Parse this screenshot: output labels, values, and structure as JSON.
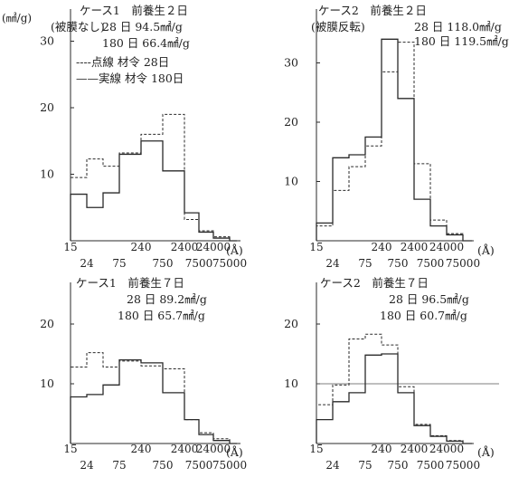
{
  "ylabel": "(㎟/g)",
  "x_tick_labels_upper": [
    "15",
    "240",
    "2400",
    "24000"
  ],
  "x_tick_labels_lower": [
    "24",
    "75",
    "750",
    "7500",
    "75000"
  ],
  "xunit": "(Å)",
  "legend": {
    "dotted": "----点線 材令 28日",
    "solid": "——実線 材令 180日"
  },
  "chart_data": [
    {
      "type": "histogram-step",
      "title": "ケース1　前養生２日",
      "subtitle": "(被膜なし)",
      "annotations": [
        "28 日  94.5㎟/g",
        "180 日  66.4㎟/g"
      ],
      "bins": [
        "15-24",
        "24-40",
        "40-75",
        "75-240",
        "240-750",
        "750-2400",
        "2400-7500",
        "7500-24000",
        "24000-75000",
        "75000+"
      ],
      "ylim": [
        0,
        35
      ],
      "yticks": [
        10,
        20,
        30
      ],
      "series": [
        {
          "name": "材令 28日",
          "style": "dotted",
          "values": [
            9.5,
            12.3,
            11.2,
            13.2,
            16.0,
            19.0,
            3.2,
            1.5,
            0.6,
            0
          ]
        },
        {
          "name": "材令 180日",
          "style": "solid",
          "values": [
            7.0,
            5.0,
            7.2,
            13.0,
            15.0,
            10.5,
            4.2,
            1.3,
            0.4,
            0
          ]
        }
      ]
    },
    {
      "type": "histogram-step",
      "title": "ケース2　前養生２日",
      "subtitle": "(被膜反転)",
      "annotations": [
        "28 日 118.0㎟/g",
        "180 日 119.5㎟/g"
      ],
      "bins": [
        "15-24",
        "24-40",
        "40-75",
        "75-240",
        "240-750",
        "750-2400",
        "2400-7500",
        "7500-24000",
        "24000-75000",
        "75000+"
      ],
      "ylim": [
        0,
        35
      ],
      "yticks": [
        10,
        20,
        30
      ],
      "series": [
        {
          "name": "材令 28日",
          "style": "dotted",
          "values": [
            2.5,
            8.5,
            12.5,
            16.0,
            28.5,
            33.5,
            13.0,
            3.5,
            1.2,
            0
          ]
        },
        {
          "name": "材令 180日",
          "style": "solid",
          "values": [
            3.0,
            14.0,
            14.5,
            17.5,
            34.0,
            24.0,
            7.0,
            2.5,
            1.0,
            0
          ]
        }
      ]
    },
    {
      "type": "histogram-step",
      "title": "ケース1　前養生７日",
      "annotations": [
        "28 日  89.2㎟/g",
        "180 日  65.7㎟/g"
      ],
      "bins": [
        "15-24",
        "24-40",
        "40-75",
        "75-240",
        "240-750",
        "750-2400",
        "2400-7500",
        "7500-24000",
        "24000-75000",
        "75000+"
      ],
      "ylim": [
        0,
        25
      ],
      "yticks": [
        10,
        20
      ],
      "series": [
        {
          "name": "材令 28日",
          "style": "dotted",
          "values": [
            12.8,
            15.2,
            12.8,
            13.8,
            13.0,
            12.5,
            4.0,
            1.8,
            0.8,
            0
          ]
        },
        {
          "name": "材令 180日",
          "style": "solid",
          "values": [
            7.8,
            8.2,
            9.8,
            14.0,
            13.5,
            8.5,
            4.0,
            1.5,
            0.5,
            0
          ]
        }
      ]
    },
    {
      "type": "histogram-step",
      "title": "ケース2　前養生７日",
      "annotations": [
        "28 日  96.5㎟/g",
        "180 日  60.7㎟/g"
      ],
      "bins": [
        "15-24",
        "24-40",
        "40-75",
        "75-240",
        "240-750",
        "750-2400",
        "2400-7500",
        "7500-24000",
        "24000-75000",
        "75000+"
      ],
      "ylim": [
        0,
        25
      ],
      "yticks": [
        10,
        20
      ],
      "reference_line": 10,
      "series": [
        {
          "name": "材令 28日",
          "style": "dotted",
          "values": [
            6.5,
            9.8,
            17.5,
            18.3,
            16.5,
            9.5,
            3.2,
            1.3,
            0.5,
            0
          ]
        },
        {
          "name": "材令 180日",
          "style": "solid",
          "values": [
            4.0,
            7.0,
            8.5,
            14.8,
            15.0,
            8.5,
            3.0,
            1.2,
            0.4,
            0
          ]
        }
      ]
    }
  ]
}
